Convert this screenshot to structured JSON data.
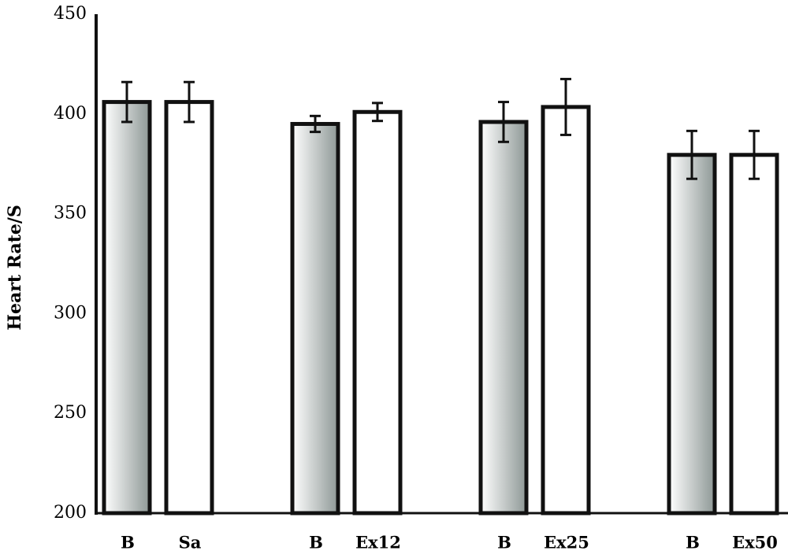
{
  "chart_data": {
    "type": "bar",
    "y_label": "Heart Rate/S",
    "categories": [
      "B",
      "Sa",
      "B",
      "Ex12",
      "B",
      "Ex25",
      "B",
      "Ex50"
    ],
    "values": [
      406,
      406,
      395,
      401,
      396,
      403.5,
      379.5,
      379.5
    ],
    "errors": [
      10,
      10,
      4,
      4.5,
      10,
      14,
      12,
      12
    ],
    "colors": [
      "#8e9896",
      "#ffffff",
      "#8e9896",
      "#ffffff",
      "#8e9896",
      "#ffffff",
      "#8e9896",
      "#ffffff"
    ],
    "ylim": [
      200,
      450
    ],
    "yticks": [
      200,
      250,
      300,
      350,
      400,
      450
    ],
    "grid": false
  }
}
